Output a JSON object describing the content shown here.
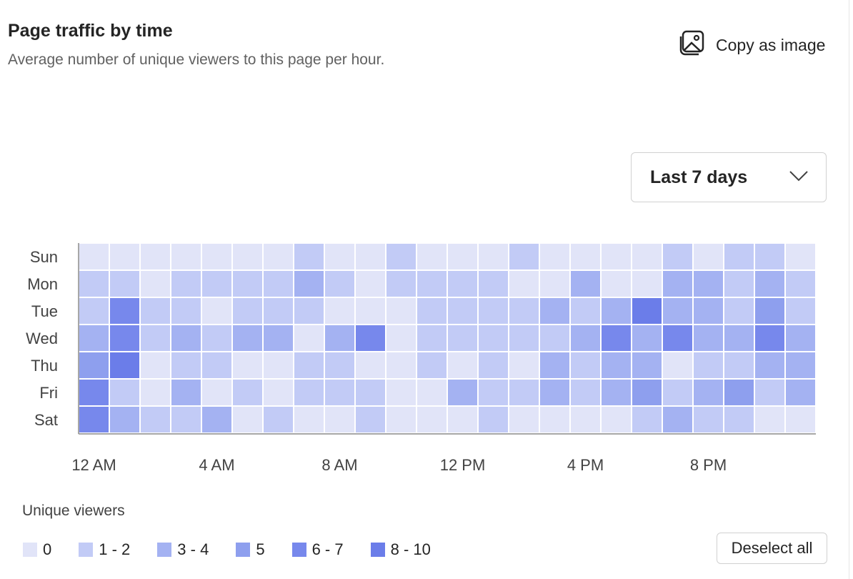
{
  "header": {
    "title": "Page traffic by time",
    "subtitle": "Average number of unique viewers to this page per hour.",
    "copy_label": "Copy as image",
    "copy_icon": "image-icon"
  },
  "range_select": {
    "value": "Last 7 days",
    "icon": "chevron-down-icon"
  },
  "legend": {
    "title": "Unique viewers",
    "items": [
      {
        "label": "0",
        "color": "#e1e4f8"
      },
      {
        "label": "1 - 2",
        "color": "#c2cbf6"
      },
      {
        "label": "3 - 4",
        "color": "#a4b2f2"
      },
      {
        "label": "5",
        "color": "#8e9fee"
      },
      {
        "label": "6 - 7",
        "color": "#7788ec"
      },
      {
        "label": "8 - 10",
        "color": "#6b7de9"
      }
    ],
    "deselect_label": "Deselect all"
  },
  "chart_data": {
    "type": "heatmap",
    "title": "Page traffic by time",
    "x_tick_labels": [
      "12 AM",
      "4 AM",
      "8 AM",
      "12 PM",
      "4 PM",
      "8 PM"
    ],
    "x_tick_every": 4,
    "rows": [
      "Sun",
      "Mon",
      "Tue",
      "Wed",
      "Thu",
      "Fri",
      "Sat"
    ],
    "columns": 24,
    "bin_levels": [
      [
        0,
        0,
        0,
        0,
        0,
        0,
        0,
        1,
        0,
        0,
        1,
        0,
        0,
        0,
        1,
        0,
        0,
        0,
        0,
        1,
        0,
        1,
        1,
        0
      ],
      [
        1,
        1,
        0,
        1,
        1,
        1,
        1,
        2,
        1,
        0,
        1,
        1,
        1,
        1,
        0,
        0,
        2,
        0,
        0,
        2,
        2,
        1,
        2,
        1
      ],
      [
        1,
        4,
        1,
        1,
        0,
        1,
        1,
        1,
        0,
        0,
        0,
        1,
        1,
        1,
        1,
        2,
        1,
        2,
        5,
        2,
        2,
        1,
        3,
        1
      ],
      [
        2,
        4,
        1,
        2,
        1,
        2,
        2,
        0,
        2,
        4,
        0,
        1,
        1,
        1,
        1,
        1,
        2,
        4,
        2,
        4,
        2,
        2,
        4,
        2
      ],
      [
        3,
        5,
        0,
        1,
        1,
        0,
        0,
        1,
        1,
        0,
        0,
        1,
        0,
        1,
        0,
        2,
        1,
        2,
        2,
        0,
        1,
        1,
        2,
        2
      ],
      [
        4,
        1,
        0,
        2,
        0,
        1,
        0,
        1,
        1,
        1,
        0,
        0,
        2,
        1,
        1,
        2,
        1,
        2,
        3,
        1,
        2,
        3,
        1,
        2
      ],
      [
        4,
        2,
        1,
        1,
        2,
        0,
        1,
        0,
        0,
        1,
        0,
        0,
        0,
        1,
        0,
        0,
        0,
        0,
        1,
        2,
        1,
        1,
        0,
        0
      ]
    ]
  }
}
